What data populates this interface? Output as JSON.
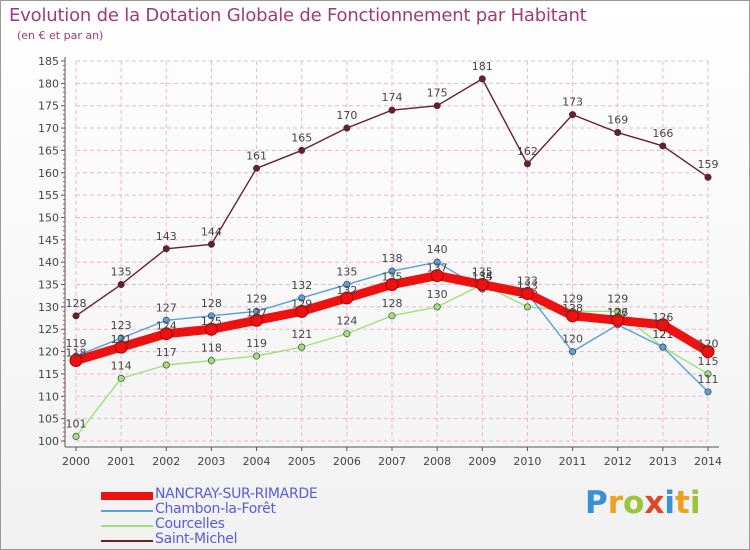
{
  "title": "Evolution de la Dotation Globale de Fonctionnement par Habitant",
  "subtitle": "(en € et par an)",
  "colors": {
    "grid": "#e6b8cf",
    "axis": "#555555",
    "tick_text": "#444444",
    "NANCRAY-SUR-RIMARDE": "#ee1111",
    "Chambon-la-Forêt": "#5aa0d9",
    "Courcelles": "#9fe07a",
    "Saint-Michel": "#6b1e2b"
  },
  "chart_data": {
    "type": "line",
    "title": "Evolution de la Dotation Globale de Fonctionnement par Habitant",
    "subtitle": "(en € et par an)",
    "xlabel": "",
    "ylabel": "",
    "x": [
      "2000",
      "2001",
      "2002",
      "2003",
      "2004",
      "2005",
      "2006",
      "2007",
      "2008",
      "2009",
      "2010",
      "2011",
      "2012",
      "2013",
      "2014"
    ],
    "ylim": [
      100,
      185
    ],
    "yticks": [
      "100",
      "105",
      "110",
      "115",
      "120",
      "125",
      "130",
      "135",
      "140",
      "145",
      "150",
      "155",
      "160",
      "165",
      "170",
      "175",
      "180",
      "185"
    ],
    "grid": true,
    "legend": "bottom-left",
    "series": [
      {
        "name": "NANCRAY-SUR-RIMARDE",
        "values": [
          118,
          121,
          124,
          125,
          127,
          129,
          132,
          135,
          137,
          135,
          133,
          128,
          127,
          126,
          120
        ],
        "labels": [
          "118",
          "121",
          "124",
          "125",
          "127",
          "129",
          "132",
          "135",
          "137",
          "135",
          "133",
          "128",
          "127",
          "126",
          "120"
        ]
      },
      {
        "name": "Chambon-la-Forêt",
        "values": [
          119,
          123,
          127,
          128,
          129,
          132,
          135,
          138,
          140,
          134,
          133,
          120,
          126,
          121,
          111
        ],
        "labels": [
          "119",
          "123",
          "127",
          "128",
          "129",
          "132",
          "135",
          "138",
          "140",
          "134",
          "133",
          "120",
          "126",
          "121",
          "111"
        ]
      },
      {
        "name": "Courcelles",
        "values": [
          101,
          114,
          117,
          118,
          119,
          121,
          124,
          128,
          130,
          135,
          130,
          129,
          129,
          121,
          115
        ],
        "labels": [
          "101",
          "114",
          "117",
          "118",
          "119",
          "121",
          "124",
          "128",
          "130",
          "135",
          "130",
          "129",
          "129",
          "121",
          "115"
        ]
      },
      {
        "name": "Saint-Michel",
        "values": [
          128,
          135,
          143,
          144,
          161,
          165,
          170,
          174,
          175,
          181,
          162,
          173,
          169,
          166,
          159
        ],
        "labels": [
          "128",
          "135",
          "143",
          "144",
          "161",
          "165",
          "170",
          "174",
          "175",
          "181",
          "162",
          "173",
          "169",
          "166",
          "159"
        ]
      }
    ]
  },
  "legend": {
    "items": [
      {
        "label": "NANCRAY-SUR-RIMARDE"
      },
      {
        "label": "Chambon-la-Forêt"
      },
      {
        "label": "Courcelles"
      },
      {
        "label": "Saint-Michel"
      }
    ]
  },
  "logo": {
    "letters": [
      "P",
      "r",
      "o",
      "x",
      "i",
      "t",
      "i"
    ],
    "colors": [
      "#3a8fd6",
      "#f0a020",
      "#9ac43a",
      "#e0452a",
      "#3a8fd6",
      "#f0a020",
      "#9ac43a"
    ]
  }
}
